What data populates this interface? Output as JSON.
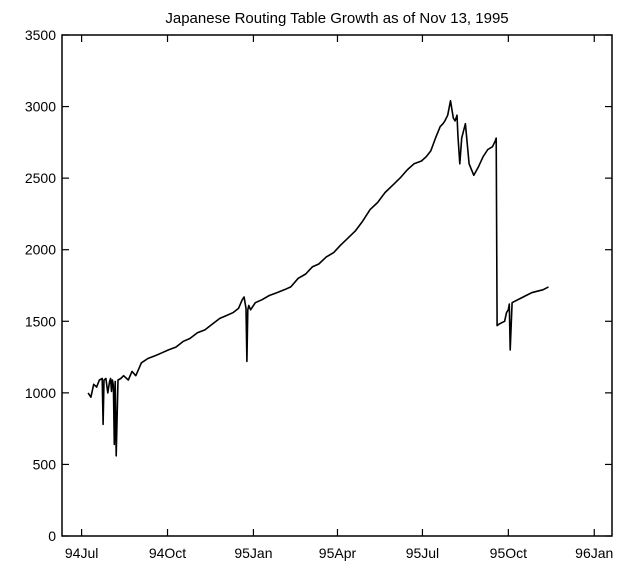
{
  "chart_data": {
    "type": "line",
    "title": "Japanese Routing Table Growth as of Nov 13, 1995",
    "xlabel": "",
    "ylabel": "",
    "x_ticks": [
      {
        "label": "94Jul",
        "value": "1994-07-01"
      },
      {
        "label": "94Oct",
        "value": "1994-10-01"
      },
      {
        "label": "95Jan",
        "value": "1995-01-01"
      },
      {
        "label": "95Apr",
        "value": "1995-04-01"
      },
      {
        "label": "95Jul",
        "value": "1995-07-01"
      },
      {
        "label": "95Oct",
        "value": "1995-10-01"
      },
      {
        "label": "96Jan",
        "value": "1996-01-01"
      }
    ],
    "y_ticks": [
      0,
      500,
      1000,
      1500,
      2000,
      2500,
      3000,
      3500
    ],
    "xlim": [
      "1994-06-10",
      "1996-01-20"
    ],
    "ylim": [
      0,
      3500
    ],
    "grid": false,
    "series": [
      {
        "x": [
          "1994-07-08",
          "1994-07-11",
          "1994-07-14",
          "1994-07-17",
          "1994-07-20",
          "1994-07-23",
          "1994-07-24",
          "1994-07-25",
          "1994-07-27",
          "1994-07-29",
          "1994-07-31",
          "1994-08-01",
          "1994-08-02",
          "1994-08-03",
          "1994-08-04",
          "1994-08-05",
          "1994-08-06",
          "1994-08-07",
          "1994-08-09",
          "1994-08-12",
          "1994-08-15",
          "1994-08-20",
          "1994-08-24",
          "1994-08-28",
          "1994-09-03",
          "1994-09-10",
          "1994-09-18",
          "1994-09-25",
          "1994-10-02",
          "1994-10-10",
          "1994-10-18",
          "1994-10-25",
          "1994-11-02",
          "1994-11-10",
          "1994-11-18",
          "1994-11-26",
          "1994-12-03",
          "1994-12-10",
          "1994-12-16",
          "1994-12-20",
          "1994-12-22",
          "1994-12-24",
          "1994-12-25",
          "1994-12-26",
          "1994-12-27",
          "1994-12-29",
          "1995-01-03",
          "1995-01-10",
          "1995-01-18",
          "1995-01-26",
          "1995-02-03",
          "1995-02-10",
          "1995-02-18",
          "1995-02-26",
          "1995-03-05",
          "1995-03-12",
          "1995-03-20",
          "1995-03-28",
          "1995-04-04",
          "1995-04-12",
          "1995-04-20",
          "1995-04-28",
          "1995-05-06",
          "1995-05-14",
          "1995-05-22",
          "1995-05-30",
          "1995-06-07",
          "1995-06-15",
          "1995-06-22",
          "1995-06-30",
          "1995-07-05",
          "1995-07-10",
          "1995-07-15",
          "1995-07-20",
          "1995-07-23",
          "1995-07-25",
          "1995-07-28",
          "1995-07-31",
          "1995-08-03",
          "1995-08-05",
          "1995-08-07",
          "1995-08-08",
          "1995-08-10",
          "1995-08-12",
          "1995-08-16",
          "1995-08-20",
          "1995-08-25",
          "1995-08-30",
          "1995-09-04",
          "1995-09-09",
          "1995-09-14",
          "1995-09-17",
          "1995-09-18",
          "1995-09-19",
          "1995-09-21",
          "1995-09-24",
          "1995-09-27",
          "1995-09-29",
          "1995-10-01",
          "1995-10-02",
          "1995-10-03",
          "1995-10-05",
          "1995-10-08",
          "1995-10-14",
          "1995-10-20",
          "1995-10-26",
          "1995-11-01",
          "1995-11-07",
          "1995-11-13"
        ],
        "y": [
          1000,
          970,
          1060,
          1040,
          1090,
          1100,
          780,
          1090,
          1100,
          1000,
          1080,
          1100,
          1010,
          1090,
          1050,
          640,
          1080,
          560,
          1090,
          1100,
          1120,
          1090,
          1150,
          1120,
          1210,
          1240,
          1260,
          1280,
          1300,
          1320,
          1360,
          1380,
          1420,
          1440,
          1480,
          1520,
          1540,
          1560,
          1590,
          1650,
          1670,
          1590,
          1220,
          1580,
          1610,
          1580,
          1630,
          1650,
          1680,
          1700,
          1720,
          1740,
          1800,
          1830,
          1880,
          1900,
          1950,
          1980,
          2030,
          2080,
          2130,
          2200,
          2280,
          2330,
          2400,
          2450,
          2500,
          2560,
          2600,
          2620,
          2650,
          2690,
          2780,
          2860,
          2880,
          2900,
          2940,
          3040,
          2920,
          2900,
          2940,
          2800,
          2600,
          2780,
          2880,
          2600,
          2520,
          2580,
          2650,
          2700,
          2720,
          2760,
          2780,
          1470,
          1480,
          1490,
          1500,
          1560,
          1580,
          1620,
          1300,
          1630,
          1640,
          1660,
          1680,
          1700,
          1710,
          1720,
          1740
        ]
      }
    ]
  }
}
